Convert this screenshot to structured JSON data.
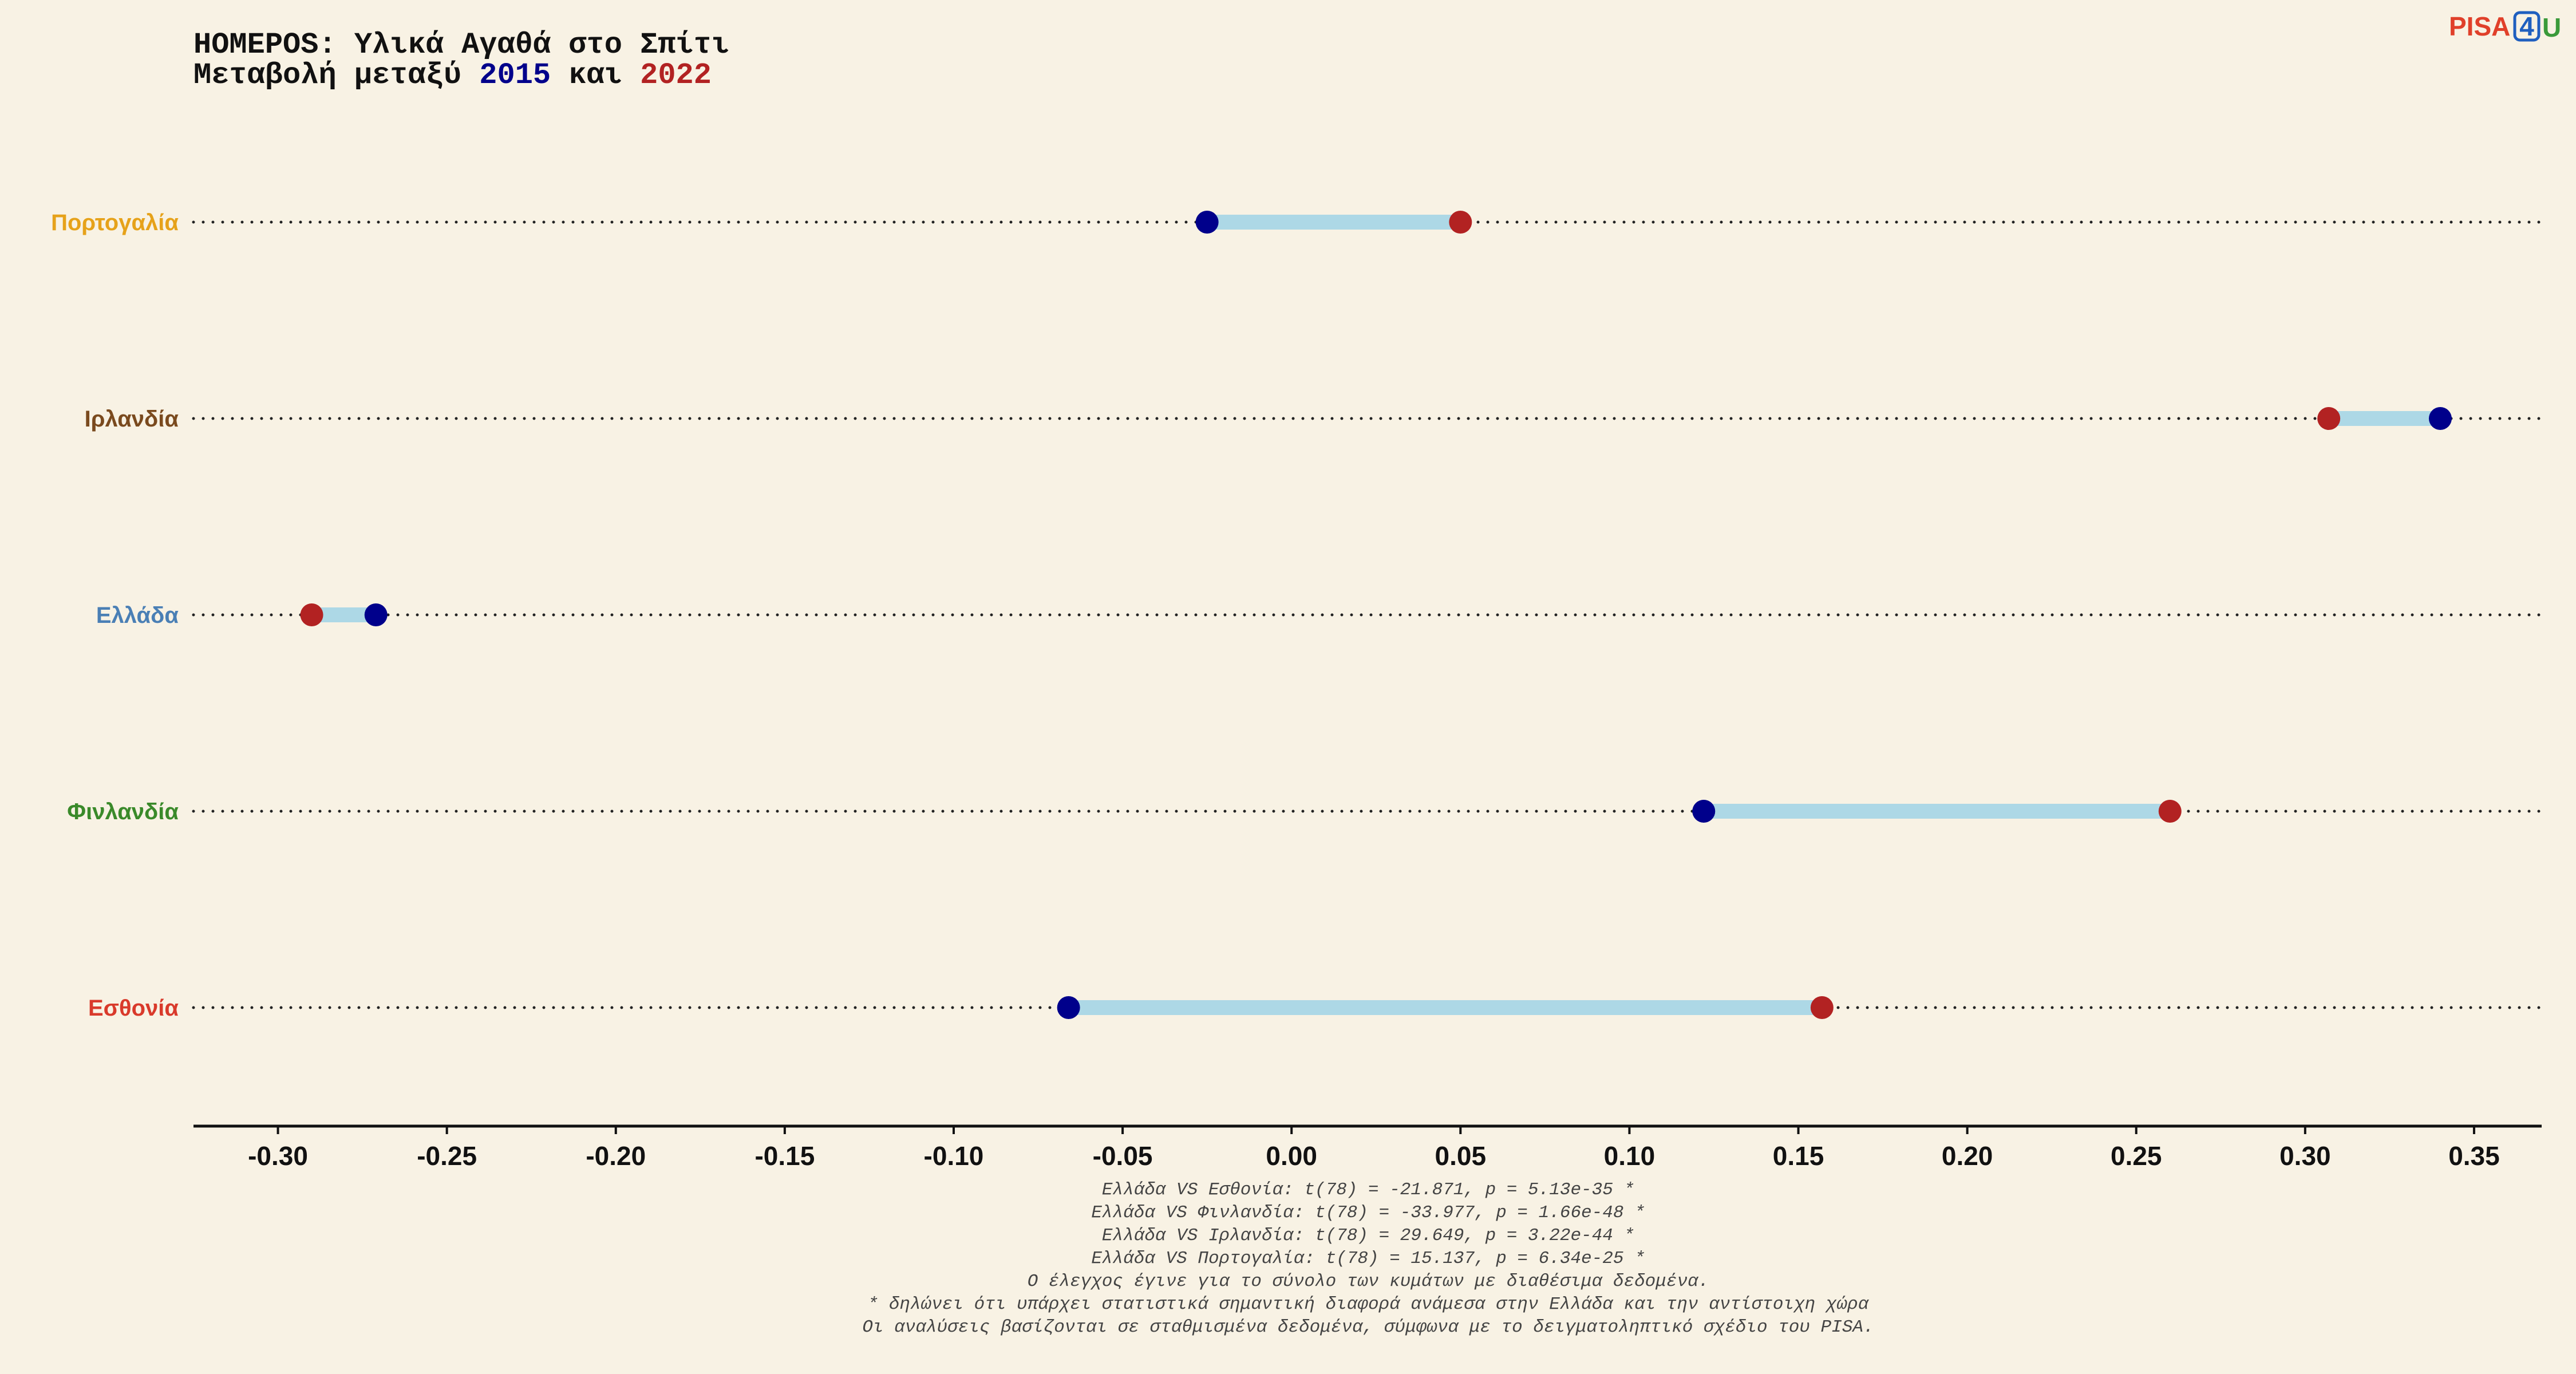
{
  "title": {
    "line1": "HOMEPOS: Υλικά Αγαθά στο Σπίτι",
    "line2_prefix": "Μεταβολή μεταξύ ",
    "year1": "2015",
    "line2_middle": " και ",
    "year2": "2022"
  },
  "logo": {
    "part1": "PISA",
    "part2": "4",
    "part3": "U"
  },
  "colors": {
    "background": "#f8f2e4",
    "year1": "#00008b",
    "year2": "#b22222",
    "connector": "#add8e6",
    "logo_red": "#e0402a",
    "logo_blue": "#1f5fbf",
    "logo_green": "#3a9a3a"
  },
  "chart_data": {
    "type": "dumbbell",
    "xlim": [
      -0.325,
      0.37
    ],
    "xticks": [
      -0.3,
      -0.25,
      -0.2,
      -0.15,
      -0.1,
      -0.05,
      0.0,
      0.05,
      0.1,
      0.15,
      0.2,
      0.25,
      0.3,
      0.35
    ],
    "xtick_labels": [
      "-0.30",
      "-0.25",
      "-0.20",
      "-0.15",
      "-0.10",
      "-0.05",
      "0.00",
      "0.05",
      "0.10",
      "0.15",
      "0.20",
      "0.25",
      "0.30",
      "0.35"
    ],
    "categories": [
      "Πορτογαλία",
      "Ιρλανδία",
      "Ελλάδα",
      "Φινλανδία",
      "Εσθονία"
    ],
    "category_colors": [
      "#e6a21a",
      "#7a4a1e",
      "#4a7fb5",
      "#3a8a2a",
      "#d93a2b"
    ],
    "series": [
      {
        "name": "2015",
        "values": [
          -0.025,
          0.34,
          -0.271,
          0.122,
          -0.066
        ]
      },
      {
        "name": "2022",
        "values": [
          0.05,
          0.307,
          -0.29,
          0.26,
          0.157
        ]
      }
    ],
    "grid": "dotted per row",
    "notes": [
      "Ελλάδα VS Εσθονία: t(78) = -21.871, p = 5.13e-35 *",
      "Ελλάδα VS Φινλανδία: t(78) = -33.977, p = 1.66e-48 *",
      "Ελλάδα VS Ιρλανδία: t(78) = 29.649, p = 3.22e-44 *",
      "Ελλάδα VS Πορτογαλία: t(78) = 15.137, p = 6.34e-25 *",
      "Ο έλεγχος έγινε για το σύνολο των κυμάτων με διαθέσιμα δεδομένα.",
      "* δηλώνει ότι υπάρχει στατιστικά σημαντική διαφορά ανάμεσα στην Ελλάδα και την αντίστοιχη χώρα",
      "Οι αναλύσεις βασίζονται σε σταθμισμένα δεδομένα, σύμφωνα με το δειγματοληπτικό σχέδιο του PISA."
    ]
  }
}
